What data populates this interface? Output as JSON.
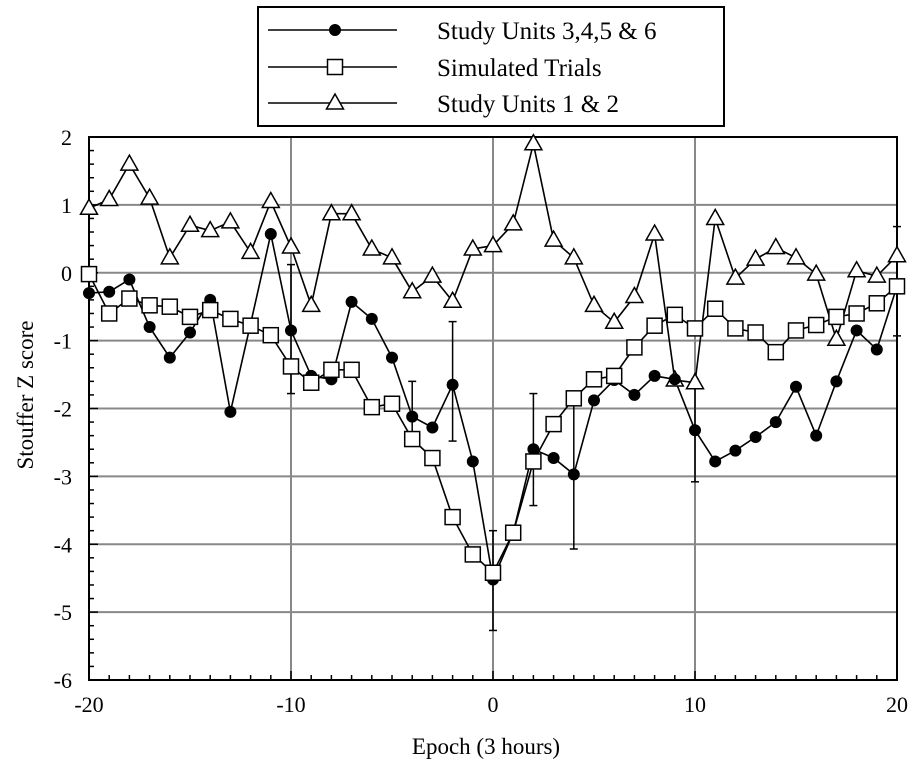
{
  "chart_data": {
    "type": "line",
    "xlabel": "Epoch (3 hours)",
    "ylabel": "Stouffer Z score",
    "xlim": [
      -20,
      20
    ],
    "ylim": [
      -6,
      2
    ],
    "xticks": [
      -20,
      -10,
      0,
      10,
      20
    ],
    "yticks": [
      2,
      1,
      0,
      -1,
      -2,
      -3,
      -4,
      -5,
      -6
    ],
    "xtick_labels": [
      "-20",
      "-10",
      "0",
      "10",
      "20"
    ],
    "ytick_labels": [
      "2",
      "1",
      "0",
      "-1",
      "-2",
      "-3",
      "-4",
      "-5",
      "-6"
    ],
    "grid": true,
    "legend_position": "top-center",
    "series": [
      {
        "name": "Study Units 3,4,5 & 6",
        "marker": "filled-circle",
        "x": [
          -20,
          -19,
          -18,
          -17,
          -16,
          -15,
          -14,
          -13,
          -12,
          -11,
          -10,
          -9,
          -8,
          -7,
          -6,
          -5,
          -4,
          -3,
          -2,
          -1,
          0,
          1,
          2,
          3,
          4,
          5,
          6,
          7,
          8,
          9,
          10,
          11,
          12,
          13,
          14,
          15,
          16,
          17,
          18,
          19,
          20
        ],
        "y": [
          -0.3,
          -0.28,
          -0.1,
          -0.8,
          -1.25,
          -0.88,
          -0.4,
          -2.05,
          -0.75,
          0.57,
          -0.85,
          -1.52,
          -1.57,
          -0.43,
          -0.68,
          -1.25,
          -2.12,
          -2.28,
          -1.65,
          -2.78,
          -4.52,
          -3.83,
          -2.6,
          -2.73,
          -2.97,
          -1.88,
          -1.58,
          -1.8,
          -1.52,
          -1.57,
          -2.32,
          -2.78,
          -2.62,
          -2.42,
          -2.2,
          -1.68,
          -2.4,
          -1.6,
          -0.85,
          -1.13,
          -0.2
        ]
      },
      {
        "name": "Simulated Trials",
        "marker": "open-square",
        "x": [
          -20,
          -19,
          -18,
          -17,
          -16,
          -15,
          -14,
          -13,
          -12,
          -11,
          -10,
          -9,
          -8,
          -7,
          -6,
          -5,
          -4,
          -3,
          -2,
          -1,
          0,
          1,
          2,
          3,
          4,
          5,
          6,
          7,
          8,
          9,
          10,
          11,
          12,
          13,
          14,
          15,
          16,
          17,
          18,
          19,
          20
        ],
        "y": [
          -0.02,
          -0.6,
          -0.38,
          -0.48,
          -0.5,
          -0.65,
          -0.55,
          -0.68,
          -0.78,
          -0.92,
          -1.38,
          -1.62,
          -1.43,
          -1.43,
          -1.98,
          -1.93,
          -2.45,
          -2.73,
          -3.6,
          -4.15,
          -4.42,
          -3.83,
          -2.78,
          -2.23,
          -1.85,
          -1.57,
          -1.52,
          -1.1,
          -0.78,
          -0.62,
          -0.82,
          -0.53,
          -0.82,
          -0.88,
          -1.17,
          -0.85,
          -0.77,
          -0.65,
          -0.6,
          -0.45,
          -0.2
        ]
      },
      {
        "name": "Study Units 1 & 2",
        "marker": "open-triangle",
        "x": [
          -20,
          -19,
          -18,
          -17,
          -16,
          -15,
          -14,
          -13,
          -12,
          -11,
          -10,
          -9,
          -8,
          -7,
          -6,
          -5,
          -4,
          -3,
          -2,
          -1,
          0,
          1,
          2,
          3,
          4,
          5,
          6,
          7,
          8,
          9,
          10,
          11,
          12,
          13,
          14,
          15,
          16,
          17,
          18,
          19,
          20
        ],
        "y": [
          0.95,
          1.08,
          1.6,
          1.1,
          0.22,
          0.7,
          0.62,
          0.75,
          0.3,
          1.05,
          0.38,
          -0.48,
          0.87,
          0.87,
          0.35,
          0.22,
          -0.28,
          -0.05,
          -0.42,
          0.35,
          0.4,
          0.72,
          1.9,
          0.48,
          0.22,
          -0.48,
          -0.73,
          -0.35,
          0.57,
          -1.58,
          -1.62,
          0.8,
          -0.08,
          0.2,
          0.37,
          0.22,
          -0.02,
          -0.98,
          0.03,
          -0.05,
          0.25
        ]
      }
    ],
    "error_bars": [
      {
        "series": "Study Units 3,4,5 & 6",
        "x": -10,
        "low": -1.78,
        "high": 0.12
      },
      {
        "series": "Study Units 3,4,5 & 6",
        "x": -4,
        "low": -2.55,
        "high": -1.6
      },
      {
        "series": "Study Units 3,4,5 & 6",
        "x": -2,
        "low": -2.48,
        "high": -0.72
      },
      {
        "series": "Study Units 3,4,5 & 6",
        "x": 0,
        "low": -5.27,
        "high": -3.8
      },
      {
        "series": "Study Units 3,4,5 & 6",
        "x": 2,
        "low": -3.43,
        "high": -1.78
      },
      {
        "series": "Study Units 3,4,5 & 6",
        "x": 4,
        "low": -4.07,
        "high": -1.88
      },
      {
        "series": "Study Units 3,4,5 & 6",
        "x": 10,
        "low": -3.08,
        "high": -1.57
      },
      {
        "series": "Study Units 3,4,5 & 6",
        "x": 20,
        "low": -0.93,
        "high": 0.68
      }
    ]
  }
}
